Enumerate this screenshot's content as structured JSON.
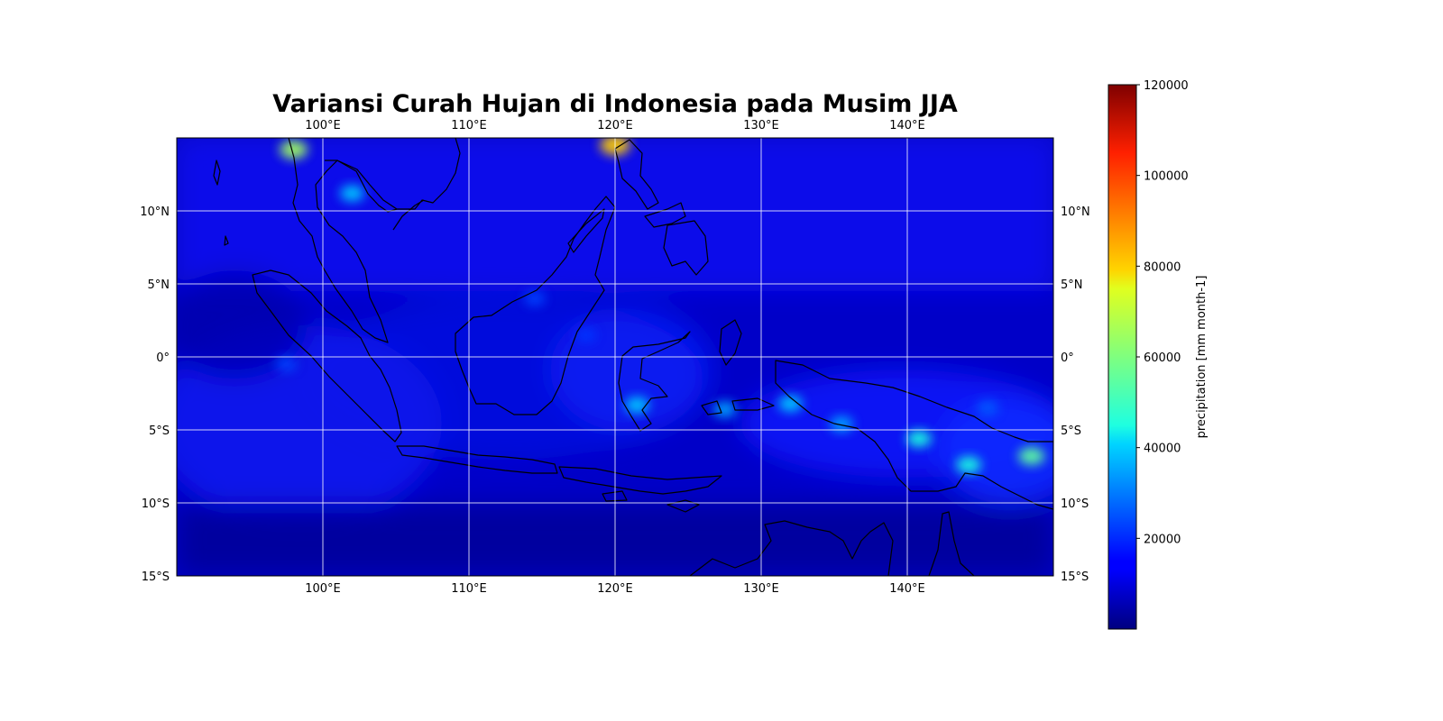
{
  "title": "Variansi Curah Hujan di Indonesia pada Musim JJA",
  "map": {
    "extent": {
      "lon": [
        90,
        150
      ],
      "lat": [
        -15,
        15
      ]
    },
    "projection": "PlateCarree",
    "colormap": "jet",
    "coastlines": true,
    "gridlines": true,
    "lon_ticks": [
      {
        "value": 100,
        "label": "100°E"
      },
      {
        "value": 110,
        "label": "110°E"
      },
      {
        "value": 120,
        "label": "120°E"
      },
      {
        "value": 130,
        "label": "130°E"
      },
      {
        "value": 140,
        "label": "140°E"
      }
    ],
    "lat_ticks": [
      {
        "value": 10,
        "label": "10°N"
      },
      {
        "value": 5,
        "label": "5°N"
      },
      {
        "value": 0,
        "label": "0°"
      },
      {
        "value": -5,
        "label": "5°S"
      },
      {
        "value": -10,
        "label": "10°S"
      },
      {
        "value": -15,
        "label": "15°S"
      }
    ],
    "hotspots": [
      {
        "lon": 98.0,
        "lat": 14.2,
        "value": 65000
      },
      {
        "lon": 120.0,
        "lat": 14.5,
        "value": 80000
      },
      {
        "lon": 102.0,
        "lat": 11.2,
        "value": 40000
      },
      {
        "lon": 132.0,
        "lat": -3.2,
        "value": 40000
      },
      {
        "lon": 127.5,
        "lat": -3.6,
        "value": 35000
      },
      {
        "lon": 121.5,
        "lat": -3.3,
        "value": 40000
      },
      {
        "lon": 140.8,
        "lat": -5.6,
        "value": 45000
      },
      {
        "lon": 144.2,
        "lat": -7.4,
        "value": 45000
      },
      {
        "lon": 148.5,
        "lat": -6.8,
        "value": 55000
      },
      {
        "lon": 135.5,
        "lat": -4.6,
        "value": 35000
      },
      {
        "lon": 145.5,
        "lat": -3.5,
        "value": 25000
      },
      {
        "lon": 97.5,
        "lat": -0.5,
        "value": 22000
      },
      {
        "lon": 114.5,
        "lat": 4.0,
        "value": 22000
      },
      {
        "lon": 118.0,
        "lat": 1.5,
        "value": 20000
      }
    ]
  },
  "colorbar": {
    "label": "precipitation [mm month-1]",
    "min": 0,
    "max": 120000,
    "ticks": [
      {
        "value": 20000,
        "label": "20000"
      },
      {
        "value": 40000,
        "label": "40000"
      },
      {
        "value": 60000,
        "label": "60000"
      },
      {
        "value": 80000,
        "label": "80000"
      },
      {
        "value": 100000,
        "label": "100000"
      },
      {
        "value": 120000,
        "label": "120000"
      }
    ]
  }
}
